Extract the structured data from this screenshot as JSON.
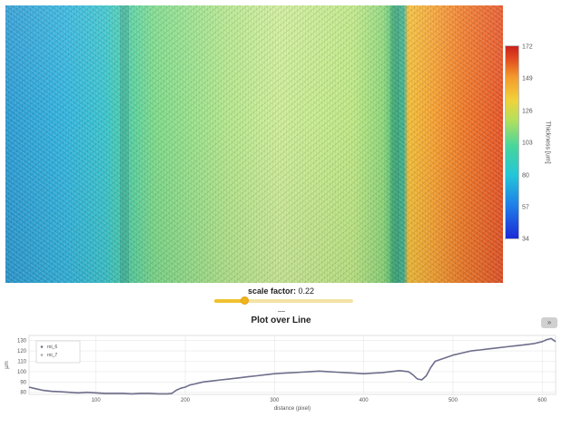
{
  "heatmap": {
    "colorbar": {
      "title": "Thickness [um]",
      "ticks": [
        "172",
        "149",
        "126",
        "103",
        "80",
        "57",
        "34"
      ],
      "colors": [
        "#1b2ad8",
        "#23c6d8",
        "#b6e05a",
        "#f39a2c",
        "#c9221b"
      ]
    }
  },
  "controls": {
    "scale_label": "scale factor:",
    "scale_value": "0.22",
    "scale_fraction": 0.22
  },
  "plot": {
    "title": "Plot over Line",
    "expand_icon": "expand-icon"
  },
  "chart_data": {
    "type": "line",
    "title": "Plot over Line",
    "xlabel": "distance (pixel)",
    "ylabel": "µm",
    "xlim": [
      25,
      615
    ],
    "ylim": [
      78,
      135
    ],
    "xticks": [
      "100",
      "200",
      "300",
      "400",
      "500",
      "600"
    ],
    "yticks": [
      "80",
      "90",
      "100",
      "110",
      "120",
      "130"
    ],
    "grid": true,
    "legend_position": "top-left",
    "series": [
      {
        "name": "roi_6",
        "color": "#6e6e8c",
        "x": [
          25,
          30,
          35,
          40,
          50,
          60,
          70,
          80,
          90,
          100,
          110,
          120,
          130,
          140,
          150,
          160,
          170,
          180,
          185,
          190,
          195,
          200,
          205,
          210,
          220,
          230,
          240,
          250,
          260,
          270,
          280,
          290,
          300,
          310,
          320,
          330,
          340,
          350,
          360,
          370,
          380,
          390,
          400,
          410,
          420,
          430,
          440,
          450,
          455,
          460,
          465,
          470,
          475,
          480,
          490,
          500,
          510,
          520,
          530,
          540,
          550,
          560,
          570,
          580,
          590,
          600,
          605,
          610,
          615
        ],
        "y": [
          85,
          84,
          83,
          82,
          81,
          80.5,
          80,
          79.5,
          80,
          79.5,
          79,
          79,
          79,
          78.5,
          79,
          79,
          78.5,
          78.5,
          79,
          82,
          84,
          85,
          87,
          88,
          90,
          91,
          92,
          93,
          94,
          95,
          96,
          97,
          98,
          98.5,
          99,
          99.5,
          100,
          100.5,
          100,
          99.5,
          99,
          98.5,
          98,
          98.5,
          99,
          100,
          101,
          100,
          97,
          93,
          92,
          96,
          104,
          110,
          113,
          116,
          118,
          120,
          121,
          122,
          123,
          124,
          125,
          126,
          127,
          129,
          131,
          132,
          129
        ]
      },
      {
        "name": "roi_7",
        "color": "#aaaaaa",
        "x": [],
        "y": []
      }
    ]
  }
}
